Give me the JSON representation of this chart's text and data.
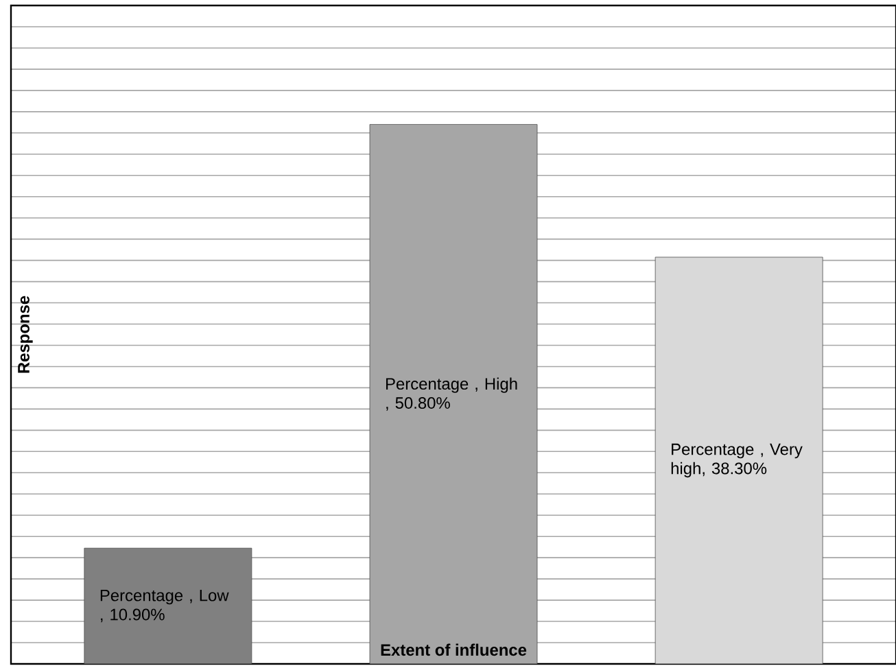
{
  "chart_data": {
    "type": "bar",
    "xlabel": "Extent of influence",
    "ylabel": "Response",
    "categories": [
      null,
      null,
      null
    ],
    "values": [
      10.9,
      50.8,
      38.3
    ],
    "colors": [
      "#808080",
      "#a6a6a6",
      "#d9d9d9"
    ],
    "value_labels": [
      "Percentage , Low , 10.90%",
      "Percentage , High , 50.80%",
      "Percentage , Very high, 38.30%"
    ],
    "ylim": [
      0,
      62
    ],
    "grid": "y",
    "tick_labels": false
  }
}
